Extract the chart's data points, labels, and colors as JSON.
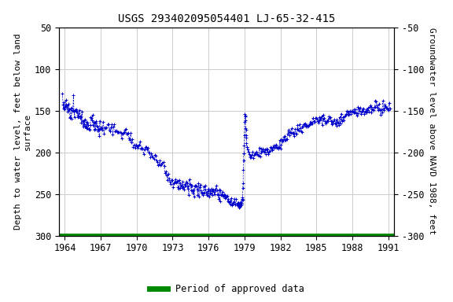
{
  "title": "USGS 293402095054401 LJ-65-32-415",
  "xlabel_ticks": [
    1964,
    1967,
    1970,
    1973,
    1976,
    1979,
    1982,
    1985,
    1988,
    1991
  ],
  "xlim": [
    1963.5,
    1991.5
  ],
  "ylim_left": [
    300,
    50
  ],
  "ylim_right": [
    -300,
    -50
  ],
  "yticks_left": [
    50,
    100,
    150,
    200,
    250,
    300
  ],
  "yticks_right": [
    -50,
    -100,
    -150,
    -200,
    -250,
    -300
  ],
  "ylabel_left": "Depth to water level, feet below land\nsurface",
  "ylabel_right": "Groundwater level above NAVD 1988, feet",
  "legend_label": "Period of approved data",
  "legend_color": "#008800",
  "data_color": "#0000cc",
  "background_color": "#ffffff",
  "grid_color": "#cccccc",
  "green_bar_color": "#008800",
  "title_fontsize": 10,
  "axis_label_fontsize": 8,
  "tick_fontsize": 8.5,
  "font_family": "monospace"
}
